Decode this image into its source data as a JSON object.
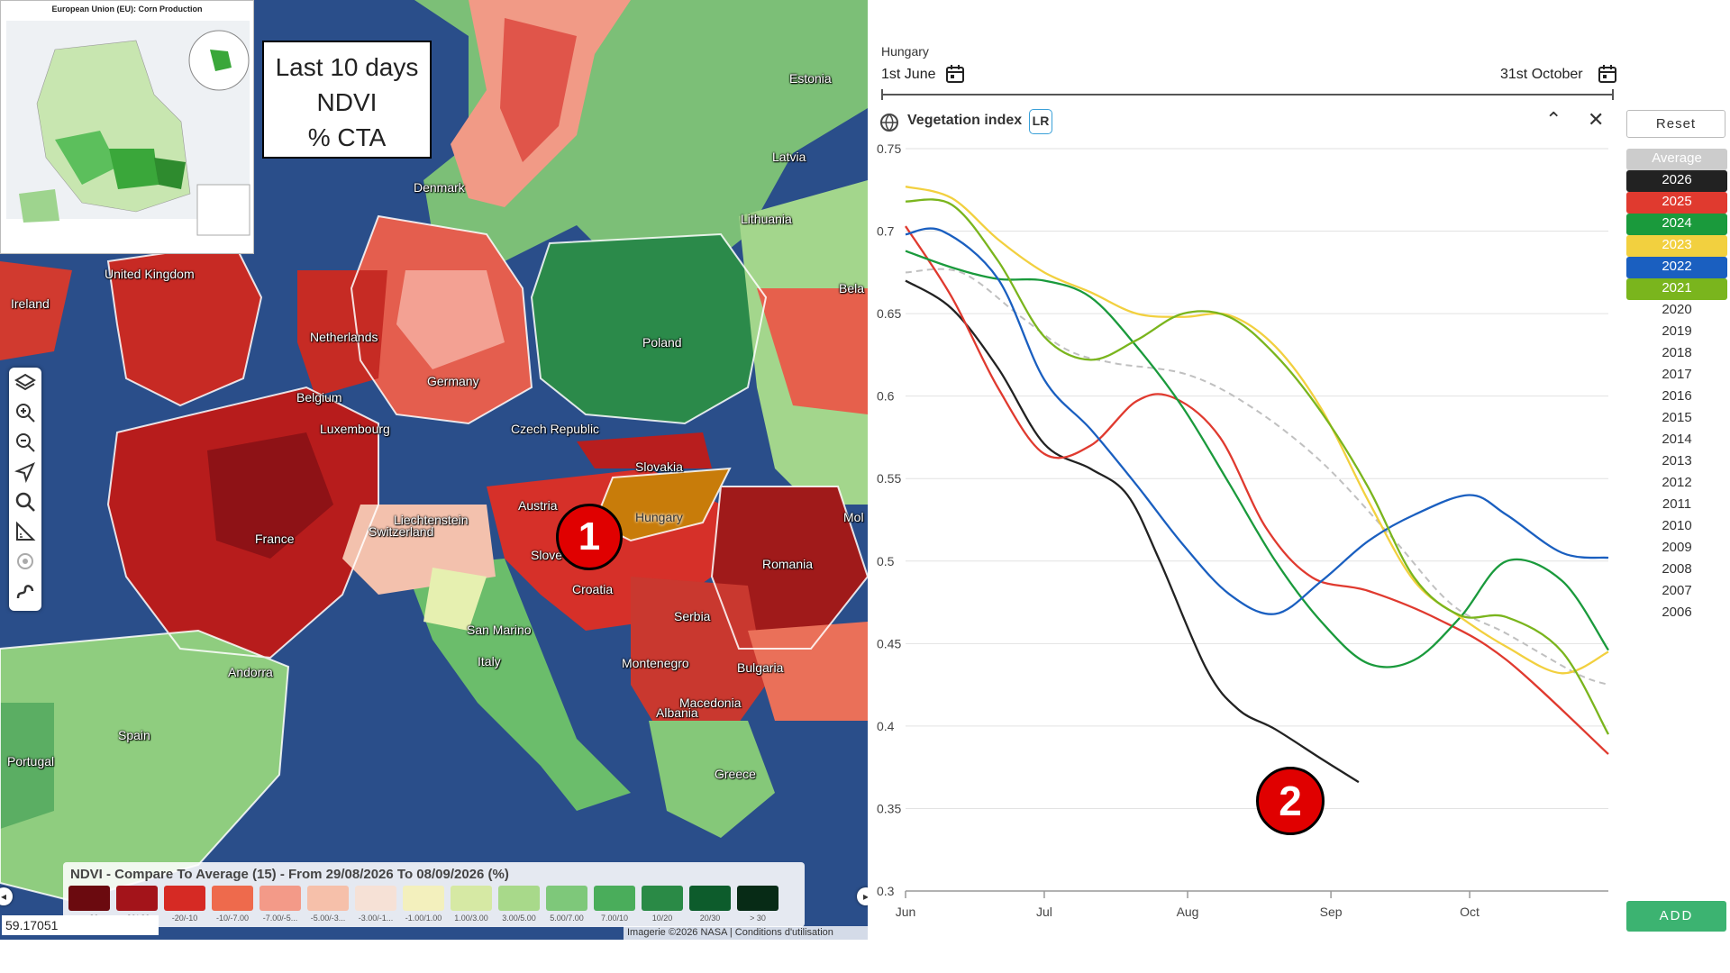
{
  "map": {
    "inset_title": "European Union (EU): Corn Production",
    "info_box": {
      "line1": "Last 10 days",
      "line2": "NDVI",
      "line3": "% CTA"
    },
    "countries": [
      {
        "name": "Estonia"
      },
      {
        "name": "Latvia"
      },
      {
        "name": "Denmark"
      },
      {
        "name": "Lithuania"
      },
      {
        "name": "United Kingdom"
      },
      {
        "name": "Ireland"
      },
      {
        "name": "Netherlands"
      },
      {
        "name": "Poland"
      },
      {
        "name": "Belgium"
      },
      {
        "name": "Germany"
      },
      {
        "name": "Luxembourg"
      },
      {
        "name": "Czech Republic"
      },
      {
        "name": "Slovakia"
      },
      {
        "name": "Austria"
      },
      {
        "name": "Hungary"
      },
      {
        "name": "Liechtenstein"
      },
      {
        "name": "Switzerland"
      },
      {
        "name": "France"
      },
      {
        "name": "Slove"
      },
      {
        "name": "Romania"
      },
      {
        "name": "Croatia"
      },
      {
        "name": "Serbia"
      },
      {
        "name": "San Marino"
      },
      {
        "name": "Andorra"
      },
      {
        "name": "Montenegro"
      },
      {
        "name": "Bulgaria"
      },
      {
        "name": "Italy"
      },
      {
        "name": "Macedonia"
      },
      {
        "name": "Albania"
      },
      {
        "name": "Spain"
      },
      {
        "name": "Portugal"
      },
      {
        "name": "Greece"
      },
      {
        "name": "Bela"
      },
      {
        "name": "Mol"
      }
    ],
    "marker1": "1",
    "toolbar": [
      {
        "icon": "layers-icon"
      },
      {
        "icon": "zoom-in-icon"
      },
      {
        "icon": "zoom-out-icon"
      },
      {
        "icon": "locate-icon"
      },
      {
        "icon": "search-icon"
      },
      {
        "icon": "measure-icon"
      },
      {
        "icon": "target-icon"
      },
      {
        "icon": "draw-icon"
      }
    ],
    "legend": {
      "title": "NDVI - Compare To Average (15) - From 29/08/2026 To 08/09/2026 (%)",
      "items": [
        {
          "label": "< -30",
          "color": "#6b0a0f"
        },
        {
          "label": "-30/-20",
          "color": "#a3141a"
        },
        {
          "label": "-20/-10",
          "color": "#d62a24"
        },
        {
          "label": "-10/-7.00",
          "color": "#ee6a4c"
        },
        {
          "label": "-7.00/-5...",
          "color": "#f39a88"
        },
        {
          "label": "-5.00/-3...",
          "color": "#f6c0aa"
        },
        {
          "label": "-3.00/-1...",
          "color": "#f6e1d6"
        },
        {
          "label": "-1.00/1.00",
          "color": "#f3f0bd"
        },
        {
          "label": "1.00/3.00",
          "color": "#d6e9a4"
        },
        {
          "label": "3.00/5.00",
          "color": "#a8d98a"
        },
        {
          "label": "5.00/7.00",
          "color": "#7ec87a"
        },
        {
          "label": "7.00/10",
          "color": "#4aad5b"
        },
        {
          "label": "10/20",
          "color": "#2a8a46"
        },
        {
          "label": "20/30",
          "color": "#0d5c2c"
        },
        {
          "label": "> 30",
          "color": "#072b16"
        }
      ]
    },
    "coordinates": "59.17051",
    "attribution": "Imagerie ©2026 NASA | Conditions d'utilisation"
  },
  "chart": {
    "region": "Hungary",
    "start_date": "1st June",
    "end_date": "31st October",
    "title": "Vegetation index",
    "badge": "LR",
    "reset_label": "Reset",
    "add_label": "ADD",
    "marker2": "2",
    "colors": {
      "accent": "#3cb371",
      "badge_border": "#3aa0d8"
    },
    "years": [
      {
        "label": "Average",
        "bg": "#cccccc",
        "fg": "#ffffff",
        "active": true
      },
      {
        "label": "2026",
        "bg": "#222222",
        "fg": "#ffffff",
        "active": true
      },
      {
        "label": "2025",
        "bg": "#e03a2f",
        "fg": "#ffffff",
        "active": true
      },
      {
        "label": "2024",
        "bg": "#1a9a3c",
        "fg": "#ffffff",
        "active": true
      },
      {
        "label": "2023",
        "bg": "#f2d03f",
        "fg": "#ffffff",
        "active": true
      },
      {
        "label": "2022",
        "bg": "#1a5fc0",
        "fg": "#ffffff",
        "active": true
      },
      {
        "label": "2021",
        "bg": "#7ab51d",
        "fg": "#ffffff",
        "active": true
      },
      {
        "label": "2020",
        "active": false
      },
      {
        "label": "2019",
        "active": false
      },
      {
        "label": "2018",
        "active": false
      },
      {
        "label": "2017",
        "active": false
      },
      {
        "label": "2016",
        "active": false
      },
      {
        "label": "2015",
        "active": false
      },
      {
        "label": "2014",
        "active": false
      },
      {
        "label": "2013",
        "active": false
      },
      {
        "label": "2012",
        "active": false
      },
      {
        "label": "2011",
        "active": false
      },
      {
        "label": "2010",
        "active": false
      },
      {
        "label": "2009",
        "active": false
      },
      {
        "label": "2008",
        "active": false
      },
      {
        "label": "2007",
        "active": false
      },
      {
        "label": "2006",
        "active": false
      }
    ]
  },
  "chart_data": {
    "type": "line",
    "title": "Vegetation index",
    "xlabel": "",
    "ylabel": "",
    "ylim": [
      0.3,
      0.75
    ],
    "yticks": [
      "0.75",
      "0.7",
      "0.65",
      "0.6",
      "0.55",
      "0.5",
      "0.45",
      "0.4",
      "0.35",
      "0.3"
    ],
    "x_months": [
      {
        "label": "Jun",
        "day": 0
      },
      {
        "label": "Jul",
        "day": 30
      },
      {
        "label": "Aug",
        "day": 61
      },
      {
        "label": "Sep",
        "day": 92
      },
      {
        "label": "Oct",
        "day": 122
      }
    ],
    "xlim": [
      0,
      152
    ],
    "grid": true,
    "series": [
      {
        "name": "Average",
        "color": "#c0c0c0",
        "dashed": true,
        "x": [
          0,
          12,
          25,
          35,
          45,
          61,
          75,
          90,
          105,
          118,
          130,
          145,
          152
        ],
        "y": [
          0.675,
          0.675,
          0.648,
          0.628,
          0.62,
          0.613,
          0.593,
          0.56,
          0.515,
          0.474,
          0.456,
          0.432,
          0.425
        ]
      },
      {
        "name": "2026",
        "color": "#222222",
        "x": [
          0,
          10,
          20,
          30,
          40,
          48,
          55,
          65,
          72,
          80,
          90,
          98
        ],
        "y": [
          0.67,
          0.653,
          0.617,
          0.571,
          0.556,
          0.54,
          0.5,
          0.435,
          0.41,
          0.398,
          0.38,
          0.366
        ]
      },
      {
        "name": "2025",
        "color": "#e03a2f",
        "x": [
          0,
          10,
          20,
          30,
          40,
          50,
          58,
          68,
          78,
          88,
          100,
          115,
          130,
          152
        ],
        "y": [
          0.703,
          0.66,
          0.605,
          0.565,
          0.57,
          0.597,
          0.599,
          0.575,
          0.52,
          0.49,
          0.482,
          0.465,
          0.44,
          0.383
        ]
      },
      {
        "name": "2024",
        "color": "#1a9a3c",
        "x": [
          0,
          10,
          20,
          30,
          40,
          50,
          60,
          70,
          80,
          90,
          100,
          110,
          120,
          130,
          142,
          152
        ],
        "y": [
          0.688,
          0.678,
          0.671,
          0.67,
          0.66,
          0.63,
          0.593,
          0.547,
          0.5,
          0.463,
          0.438,
          0.44,
          0.466,
          0.5,
          0.488,
          0.446
        ]
      },
      {
        "name": "2023",
        "color": "#f2d03f",
        "x": [
          0,
          10,
          20,
          30,
          40,
          50,
          60,
          70,
          80,
          90,
          100,
          110,
          120,
          130,
          142,
          152
        ],
        "y": [
          0.727,
          0.72,
          0.695,
          0.675,
          0.663,
          0.65,
          0.648,
          0.649,
          0.63,
          0.592,
          0.537,
          0.488,
          0.466,
          0.448,
          0.432,
          0.445
        ]
      },
      {
        "name": "2022",
        "color": "#1a5fc0",
        "x": [
          0,
          8,
          20,
          30,
          40,
          50,
          60,
          70,
          80,
          90,
          100,
          110,
          122,
          130,
          142,
          152
        ],
        "y": [
          0.698,
          0.7,
          0.671,
          0.61,
          0.58,
          0.546,
          0.51,
          0.48,
          0.468,
          0.488,
          0.512,
          0.528,
          0.54,
          0.528,
          0.505,
          0.502
        ]
      },
      {
        "name": "2021",
        "color": "#7ab51d",
        "x": [
          0,
          10,
          20,
          30,
          40,
          50,
          60,
          70,
          80,
          90,
          100,
          110,
          120,
          130,
          142,
          152
        ],
        "y": [
          0.718,
          0.716,
          0.682,
          0.636,
          0.622,
          0.634,
          0.65,
          0.648,
          0.625,
          0.59,
          0.545,
          0.49,
          0.467,
          0.466,
          0.445,
          0.395
        ]
      }
    ]
  }
}
